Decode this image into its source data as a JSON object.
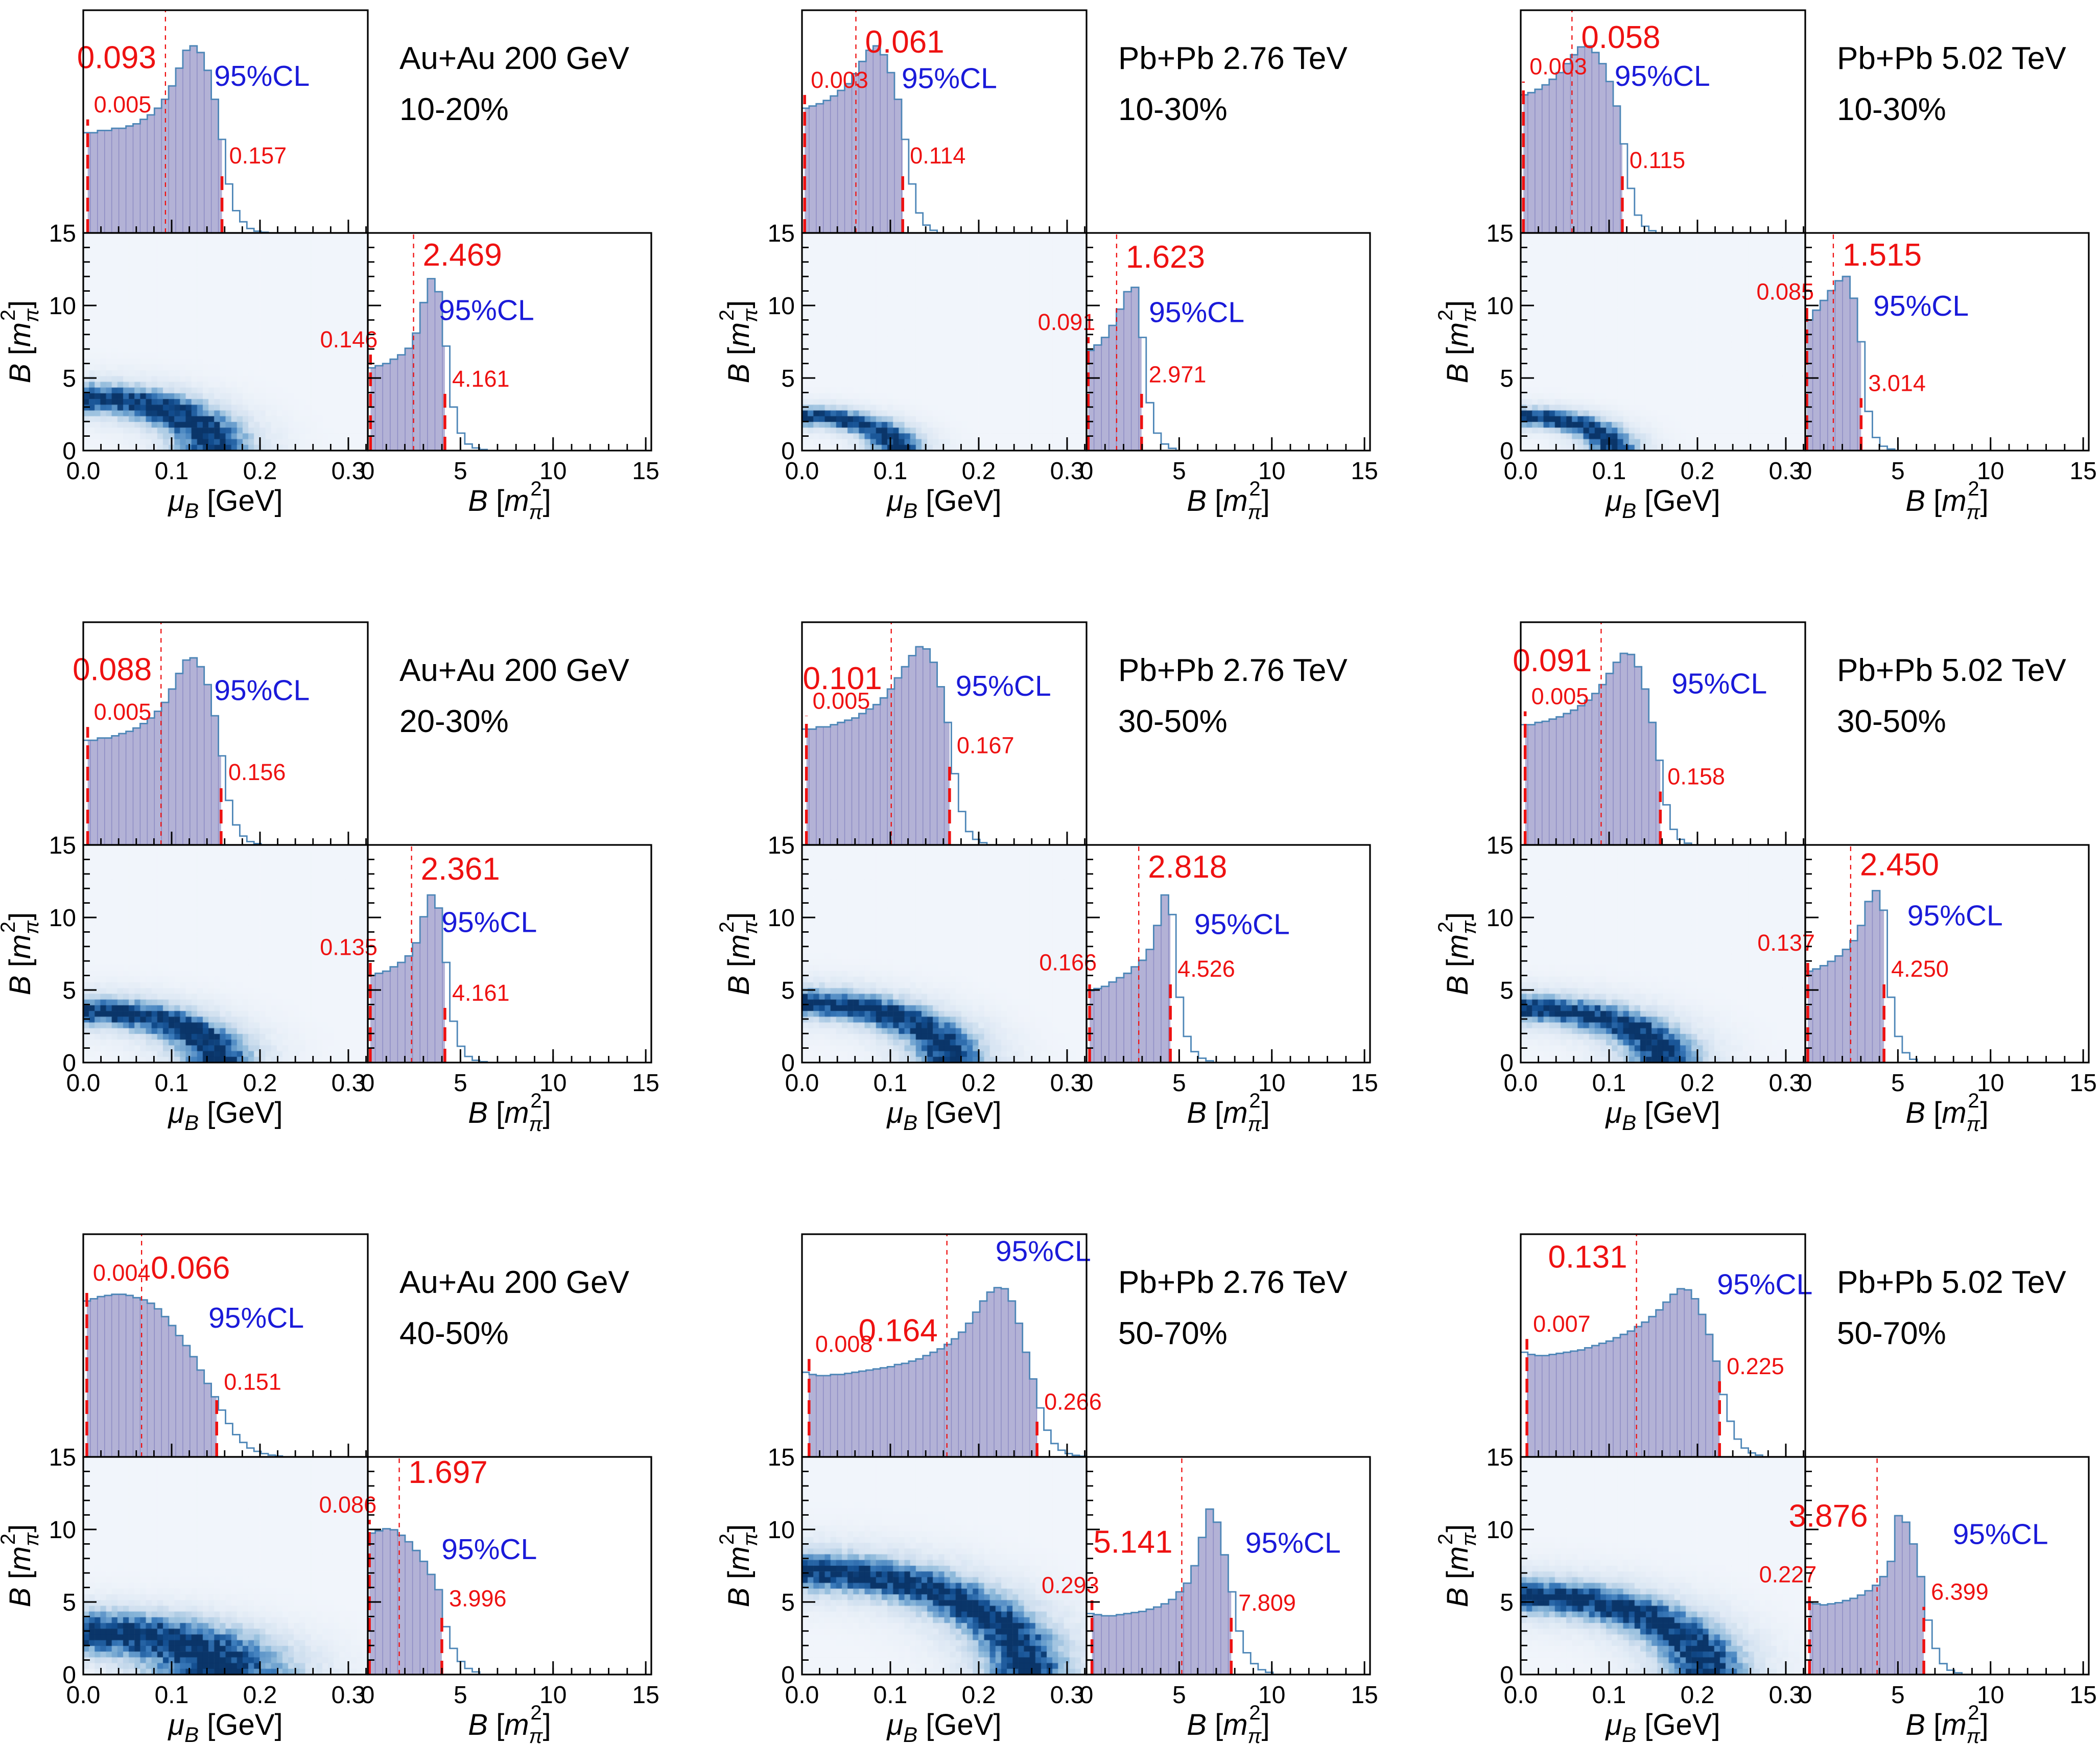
{
  "figure": {
    "type": "corner-plot-grid",
    "description": "3x3 grid of Bayesian posterior corner plots: top marginal histogram of muB, 2D density of B vs muB, right marginal histogram of B",
    "cl_label": "95%CL",
    "axes": {
      "mu_title": {
        "sym": "μ",
        "sub": "B",
        "unit": " [GeV]"
      },
      "b_title": {
        "sym": "B",
        "open": " [",
        "m": "m",
        "sub": "π",
        "sup": "2",
        "close": "]"
      },
      "mu_range": [
        0,
        0.322
      ],
      "mu_ticks": [
        {
          "v": 0.0,
          "label": "0.0"
        },
        {
          "v": 0.1,
          "label": "0.1"
        },
        {
          "v": 0.2,
          "label": "0.2"
        },
        {
          "v": 0.3,
          "label": "0.3"
        }
      ],
      "mu_minor_step": 0.02,
      "b_range": [
        0,
        15.3
      ],
      "b_ticks": [
        {
          "v": 0,
          "label": "0"
        },
        {
          "v": 5,
          "label": "5"
        },
        {
          "v": 10,
          "label": "10"
        },
        {
          "v": 15,
          "label": "15"
        }
      ],
      "b_minor_step": 1,
      "y_range": [
        0,
        15
      ],
      "y_ticks": [
        {
          "v": 0,
          "label": "0"
        },
        {
          "v": 5,
          "label": "5"
        },
        {
          "v": 10,
          "label": "10"
        },
        {
          "v": 15,
          "label": "15"
        }
      ],
      "y_minor_step": 1
    },
    "colors": {
      "hist_fill": "#b3b2d6",
      "hist_line": "#4d86b7",
      "hist_sep": "#8f8ec5",
      "red": "#ee1111",
      "blue": "#1a1ad9",
      "black": "#000000",
      "heat_stops": [
        [
          0,
          "#f1f5fb"
        ],
        [
          0.22,
          "#cfdfef"
        ],
        [
          0.45,
          "#8cb8da"
        ],
        [
          0.68,
          "#3c7cbc"
        ],
        [
          0.88,
          "#124d8f"
        ],
        [
          1,
          "#0a3569"
        ]
      ]
    }
  },
  "chart_data": [
    {
      "system": "Au+Au 200 GeV",
      "centrality": "10-20%",
      "mu_hist": {
        "type": "histogram",
        "median": 0.093,
        "ci95": [
          0.005,
          0.157
        ],
        "median_label": "0.093",
        "lo_label": "0.005",
        "hi_label": "0.157",
        "bin_width": 0.00805,
        "heights": [
          0.45,
          0.45,
          0.46,
          0.46,
          0.47,
          0.47,
          0.48,
          0.49,
          0.51,
          0.53,
          0.56,
          0.6,
          0.66,
          0.74,
          0.82,
          0.84,
          0.81,
          0.73,
          0.6,
          0.42,
          0.22,
          0.1,
          0.05,
          0.02,
          0.008,
          0.003
        ],
        "labels": {
          "side": "left",
          "my": 0.26,
          "cl": [
            0.46,
            0.34
          ]
        }
      },
      "b_hist": {
        "type": "histogram",
        "median": 2.469,
        "ci95": [
          0.146,
          4.161
        ],
        "median_label": "2.469",
        "lo_label": "0.146",
        "hi_label": "4.161",
        "bin_width": 0.4026,
        "heights": [
          0.38,
          0.39,
          0.4,
          0.42,
          0.44,
          0.47,
          0.54,
          0.68,
          0.79,
          0.73,
          0.48,
          0.2,
          0.08,
          0.03,
          0.012,
          0.005
        ],
        "labels": {
          "side": "right",
          "my": 0.15,
          "cl": [
            0.25,
            0.4
          ]
        }
      },
      "density": {
        "type": "heatmap",
        "ridge_rx": 0.148,
        "ridge_ry": 3.6,
        "sigma": 0.16,
        "halo_w": 0.28,
        "halo_sigma": 0.32,
        "seed": 11
      }
    },
    {
      "system": "Pb+Pb 2.76 TeV",
      "centrality": "10-30%",
      "mu_hist": {
        "type": "histogram",
        "median": 0.061,
        "ci95": [
          0.003,
          0.114
        ],
        "median_label": "0.061",
        "lo_label": "0.003",
        "hi_label": "0.114",
        "bin_width": 0.00805,
        "heights": [
          0.56,
          0.57,
          0.58,
          0.595,
          0.615,
          0.64,
          0.67,
          0.715,
          0.77,
          0.82,
          0.84,
          0.8,
          0.72,
          0.6,
          0.42,
          0.22,
          0.09,
          0.035,
          0.012
        ],
        "labels": {
          "side": "right",
          "my": 0.19,
          "cl": [
            0.35,
            0.35
          ]
        }
      },
      "b_hist": {
        "type": "histogram",
        "median": 1.623,
        "ci95": [
          0.091,
          2.971
        ],
        "median_label": "1.623",
        "lo_label": "0.091",
        "hi_label": "2.971",
        "bin_width": 0.4026,
        "heights": [
          0.46,
          0.485,
          0.52,
          0.575,
          0.65,
          0.73,
          0.75,
          0.52,
          0.22,
          0.08,
          0.03,
          0.01
        ],
        "labels": {
          "side": "right",
          "my": 0.16,
          "cl": [
            0.22,
            0.41
          ]
        }
      },
      "density": {
        "type": "heatmap",
        "ridge_rx": 0.108,
        "ridge_ry": 2.35,
        "sigma": 0.15,
        "halo_w": 0.28,
        "halo_sigma": 0.3,
        "seed": 22
      }
    },
    {
      "system": "Pb+Pb 5.02 TeV",
      "centrality": "10-30%",
      "mu_hist": {
        "type": "histogram",
        "median": 0.058,
        "ci95": [
          0.003,
          0.115
        ],
        "median_label": "0.058",
        "lo_label": "0.003",
        "hi_label": "0.115",
        "bin_width": 0.00805,
        "heights": [
          0.62,
          0.63,
          0.645,
          0.665,
          0.69,
          0.72,
          0.76,
          0.8,
          0.835,
          0.84,
          0.81,
          0.76,
          0.68,
          0.57,
          0.4,
          0.2,
          0.08,
          0.03,
          0.01
        ],
        "labels": {
          "side": "right",
          "my": 0.17,
          "cl": [
            0.33,
            0.34
          ]
        }
      },
      "b_hist": {
        "type": "histogram",
        "median": 1.515,
        "ci95": [
          0.085,
          3.014
        ],
        "median_label": "1.515",
        "lo_label": "0.085",
        "hi_label": "3.014",
        "bin_width": 0.4026,
        "heights": [
          0.6,
          0.645,
          0.69,
          0.735,
          0.78,
          0.8,
          0.7,
          0.5,
          0.18,
          0.06,
          0.02,
          0.007
        ],
        "labels": {
          "side": "right",
          "my": 0.15,
          "cl": [
            0.24,
            0.38
          ]
        }
      },
      "density": {
        "type": "heatmap",
        "ridge_rx": 0.105,
        "ridge_ry": 2.3,
        "sigma": 0.15,
        "halo_w": 0.28,
        "halo_sigma": 0.3,
        "seed": 33
      }
    },
    {
      "system": "Au+Au 200 GeV",
      "centrality": "20-30%",
      "mu_hist": {
        "type": "histogram",
        "median": 0.088,
        "ci95": [
          0.005,
          0.156
        ],
        "median_label": "0.088",
        "lo_label": "0.005",
        "hi_label": "0.156",
        "bin_width": 0.00805,
        "heights": [
          0.47,
          0.47,
          0.48,
          0.48,
          0.49,
          0.5,
          0.51,
          0.525,
          0.545,
          0.57,
          0.6,
          0.64,
          0.7,
          0.77,
          0.83,
          0.84,
          0.8,
          0.72,
          0.58,
          0.4,
          0.2,
          0.09,
          0.04,
          0.015,
          0.006
        ],
        "labels": {
          "side": "left",
          "my": 0.26,
          "cl": [
            0.46,
            0.35
          ]
        }
      },
      "b_hist": {
        "type": "histogram",
        "median": 2.361,
        "ci95": [
          0.135,
          4.161
        ],
        "median_label": "2.361",
        "lo_label": "0.135",
        "hi_label": "4.161",
        "bin_width": 0.4026,
        "heights": [
          0.4,
          0.41,
          0.42,
          0.44,
          0.46,
          0.49,
          0.55,
          0.67,
          0.77,
          0.71,
          0.46,
          0.19,
          0.075,
          0.028,
          0.01,
          0.004
        ],
        "labels": {
          "side": "right",
          "my": 0.16,
          "cl": [
            0.26,
            0.4
          ]
        }
      },
      "density": {
        "type": "heatmap",
        "ridge_rx": 0.152,
        "ridge_ry": 3.55,
        "sigma": 0.15,
        "halo_w": 0.28,
        "halo_sigma": 0.32,
        "seed": 44
      }
    },
    {
      "system": "Pb+Pb 2.76 TeV",
      "centrality": "30-50%",
      "mu_hist": {
        "type": "histogram",
        "median": 0.101,
        "ci95": [
          0.005,
          0.167
        ],
        "median_label": "0.101",
        "lo_label": "0.005",
        "hi_label": "0.167",
        "bin_width": 0.00805,
        "heights": [
          0.52,
          0.52,
          0.53,
          0.53,
          0.54,
          0.55,
          0.56,
          0.57,
          0.59,
          0.61,
          0.63,
          0.66,
          0.7,
          0.75,
          0.8,
          0.85,
          0.89,
          0.88,
          0.82,
          0.71,
          0.55,
          0.32,
          0.15,
          0.06,
          0.025,
          0.01
        ],
        "labels": {
          "side": "left",
          "my": 0.3,
          "cl": [
            0.54,
            0.33
          ]
        }
      },
      "b_hist": {
        "type": "histogram",
        "median": 2.818,
        "ci95": [
          0.166,
          4.526
        ],
        "median_label": "2.818",
        "lo_label": "0.166",
        "hi_label": "4.526",
        "bin_width": 0.4026,
        "heights": [
          0.33,
          0.34,
          0.35,
          0.37,
          0.39,
          0.41,
          0.44,
          0.47,
          0.52,
          0.63,
          0.77,
          0.68,
          0.3,
          0.12,
          0.05,
          0.02,
          0.008
        ],
        "labels": {
          "side": "right",
          "my": 0.15,
          "cl": [
            0.38,
            0.41
          ]
        }
      },
      "density": {
        "type": "heatmap",
        "ridge_rx": 0.168,
        "ridge_ry": 4.1,
        "sigma": 0.13,
        "halo_w": 0.28,
        "halo_sigma": 0.28,
        "seed": 55
      }
    },
    {
      "system": "Pb+Pb 5.02 TeV",
      "centrality": "30-50%",
      "mu_hist": {
        "type": "histogram",
        "median": 0.091,
        "ci95": [
          0.005,
          0.158
        ],
        "median_label": "0.091",
        "lo_label": "0.005",
        "hi_label": "0.158",
        "bin_width": 0.00805,
        "heights": [
          0.54,
          0.54,
          0.55,
          0.555,
          0.565,
          0.575,
          0.59,
          0.605,
          0.625,
          0.65,
          0.68,
          0.72,
          0.77,
          0.82,
          0.86,
          0.855,
          0.8,
          0.7,
          0.55,
          0.38,
          0.18,
          0.07,
          0.025,
          0.008
        ],
        "labels": {
          "side": "left",
          "my": 0.22,
          "cl": [
            0.53,
            0.32
          ]
        }
      },
      "b_hist": {
        "type": "histogram",
        "median": 2.45,
        "ci95": [
          0.137,
          4.25
        ],
        "median_label": "2.450",
        "lo_label": "0.137",
        "hi_label": "4.250",
        "bin_width": 0.4026,
        "heights": [
          0.42,
          0.43,
          0.445,
          0.465,
          0.49,
          0.52,
          0.56,
          0.63,
          0.74,
          0.79,
          0.7,
          0.3,
          0.12,
          0.045,
          0.015
        ],
        "labels": {
          "side": "right",
          "my": 0.14,
          "cl": [
            0.36,
            0.37
          ]
        }
      },
      "density": {
        "type": "heatmap",
        "ridge_rx": 0.162,
        "ridge_ry": 3.7,
        "sigma": 0.14,
        "halo_w": 0.28,
        "halo_sigma": 0.3,
        "seed": 66
      }
    },
    {
      "system": "Au+Au 200 GeV",
      "centrality": "40-50%",
      "mu_hist": {
        "type": "histogram",
        "median": 0.066,
        "ci95": [
          0.004,
          0.151
        ],
        "median_label": "0.066",
        "lo_label": "0.004",
        "hi_label": "0.151",
        "bin_width": 0.00805,
        "heights": [
          0.7,
          0.71,
          0.72,
          0.725,
          0.73,
          0.73,
          0.725,
          0.715,
          0.705,
          0.69,
          0.665,
          0.63,
          0.59,
          0.545,
          0.5,
          0.45,
          0.39,
          0.33,
          0.27,
          0.21,
          0.15,
          0.1,
          0.065,
          0.04,
          0.025,
          0.015,
          0.008,
          0.004
        ],
        "labels": {
          "side": "right",
          "my": 0.2,
          "cl": [
            0.44,
            0.42
          ]
        }
      },
      "b_hist": {
        "type": "histogram",
        "median": 1.697,
        "ci95": [
          0.086,
          3.996
        ],
        "median_label": "1.697",
        "lo_label": "0.086",
        "hi_label": "3.996",
        "bin_width": 0.4026,
        "heights": [
          0.65,
          0.66,
          0.67,
          0.665,
          0.64,
          0.61,
          0.57,
          0.52,
          0.46,
          0.39,
          0.22,
          0.12,
          0.06,
          0.028,
          0.012
        ],
        "labels": {
          "side": "right",
          "my": 0.12,
          "cl": [
            0.26,
            0.47
          ]
        }
      },
      "density": {
        "type": "heatmap",
        "ridge_rx": 0.155,
        "ridge_ry": 2.9,
        "sigma": 0.3,
        "halo_w": 0.35,
        "halo_sigma": 0.5,
        "seed": 77
      }
    },
    {
      "system": "Pb+Pb 2.76 TeV",
      "centrality": "50-70%",
      "mu_hist": {
        "type": "histogram",
        "median": 0.164,
        "ci95": [
          0.008,
          0.266
        ],
        "median_label": "0.164",
        "lo_label": "0.008",
        "hi_label": "0.266",
        "bin_width": 0.00805,
        "heights": [
          0.38,
          0.37,
          0.365,
          0.365,
          0.37,
          0.37,
          0.375,
          0.38,
          0.385,
          0.39,
          0.395,
          0.4,
          0.405,
          0.415,
          0.42,
          0.43,
          0.44,
          0.455,
          0.47,
          0.485,
          0.505,
          0.53,
          0.56,
          0.6,
          0.65,
          0.7,
          0.74,
          0.76,
          0.755,
          0.7,
          0.6,
          0.47,
          0.35,
          0.22,
          0.12,
          0.06,
          0.03,
          0.015,
          0.007,
          0.003
        ],
        "labels": {
          "side": "left",
          "my": 0.48,
          "cl": [
            0.68,
            0.12
          ]
        }
      },
      "b_hist": {
        "type": "histogram",
        "median": 5.141,
        "ci95": [
          0.293,
          7.809
        ],
        "median_label": "5.141",
        "lo_label": "0.293",
        "hi_label": "7.809",
        "bin_width": 0.4026,
        "heights": [
          0.28,
          0.275,
          0.27,
          0.27,
          0.275,
          0.28,
          0.285,
          0.29,
          0.3,
          0.31,
          0.325,
          0.345,
          0.38,
          0.42,
          0.5,
          0.63,
          0.76,
          0.7,
          0.55,
          0.38,
          0.2,
          0.1,
          0.05,
          0.022,
          0.01
        ],
        "labels": {
          "side": "left",
          "my": 0.44,
          "cl": [
            0.56,
            0.44
          ]
        }
      },
      "density": {
        "type": "heatmap",
        "ridge_rx": 0.255,
        "ridge_ry": 7.1,
        "sigma": 0.1,
        "halo_w": 0.3,
        "halo_sigma": 0.22,
        "seed": 88
      }
    },
    {
      "system": "Pb+Pb 5.02 TeV",
      "centrality": "50-70%",
      "mu_hist": {
        "type": "histogram",
        "median": 0.131,
        "ci95": [
          0.007,
          0.225
        ],
        "median_label": "0.131",
        "lo_label": "0.007",
        "hi_label": "0.225",
        "bin_width": 0.00805,
        "heights": [
          0.47,
          0.46,
          0.455,
          0.455,
          0.46,
          0.465,
          0.47,
          0.475,
          0.48,
          0.49,
          0.5,
          0.51,
          0.52,
          0.535,
          0.55,
          0.565,
          0.585,
          0.605,
          0.63,
          0.66,
          0.695,
          0.73,
          0.755,
          0.75,
          0.71,
          0.64,
          0.55,
          0.43,
          0.28,
          0.16,
          0.08,
          0.04,
          0.018,
          0.008
        ],
        "labels": {
          "side": "left",
          "my": 0.15,
          "cl": [
            0.69,
            0.27
          ]
        }
      },
      "b_hist": {
        "type": "histogram",
        "median": 3.876,
        "ci95": [
          0.227,
          6.399
        ],
        "median_label": "3.876",
        "lo_label": "0.227",
        "hi_label": "6.399",
        "bin_width": 0.4026,
        "heights": [
          0.33,
          0.325,
          0.32,
          0.325,
          0.33,
          0.34,
          0.35,
          0.365,
          0.385,
          0.41,
          0.45,
          0.52,
          0.73,
          0.7,
          0.6,
          0.45,
          0.25,
          0.12,
          0.05,
          0.02,
          0.008
        ],
        "labels": {
          "side": "left",
          "my": 0.32,
          "cl": [
            0.52,
            0.4
          ]
        }
      },
      "density": {
        "type": "heatmap",
        "ridge_rx": 0.21,
        "ridge_ry": 5.4,
        "sigma": 0.12,
        "halo_w": 0.28,
        "halo_sigma": 0.26,
        "seed": 99
      }
    }
  ]
}
